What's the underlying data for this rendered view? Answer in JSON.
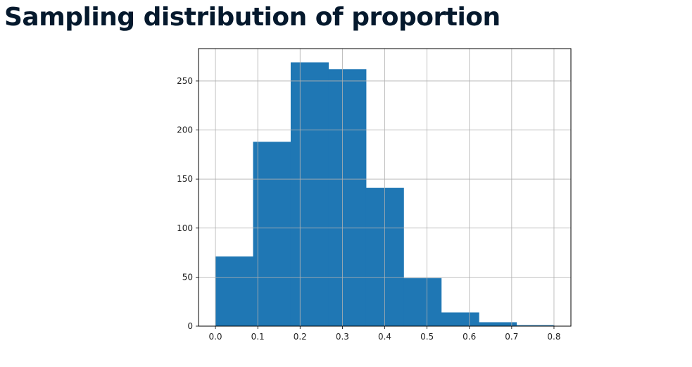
{
  "slide": {
    "title": "Sampling distribution of proportion"
  },
  "chart_data": {
    "type": "bar",
    "title": "",
    "xlabel": "",
    "ylabel": "",
    "bin_edges": [
      0.0,
      0.0889,
      0.1778,
      0.2667,
      0.3556,
      0.4444,
      0.5333,
      0.6222,
      0.7111,
      0.8
    ],
    "values": [
      71,
      188,
      269,
      262,
      141,
      49,
      14,
      4,
      1
    ],
    "xlim": [
      -0.04,
      0.84
    ],
    "ylim": [
      0,
      283
    ],
    "x_ticks": [
      0.0,
      0.1,
      0.2,
      0.3,
      0.4,
      0.5,
      0.6,
      0.7,
      0.8
    ],
    "x_tick_labels": [
      "0.0",
      "0.1",
      "0.2",
      "0.3",
      "0.4",
      "0.5",
      "0.6",
      "0.7",
      "0.8"
    ],
    "y_ticks": [
      0,
      50,
      100,
      150,
      200,
      250
    ],
    "y_tick_labels": [
      "0",
      "50",
      "100",
      "150",
      "200",
      "250"
    ],
    "grid": true,
    "bar_color": "#1f77b4",
    "grid_color": "#b0b0b0"
  }
}
